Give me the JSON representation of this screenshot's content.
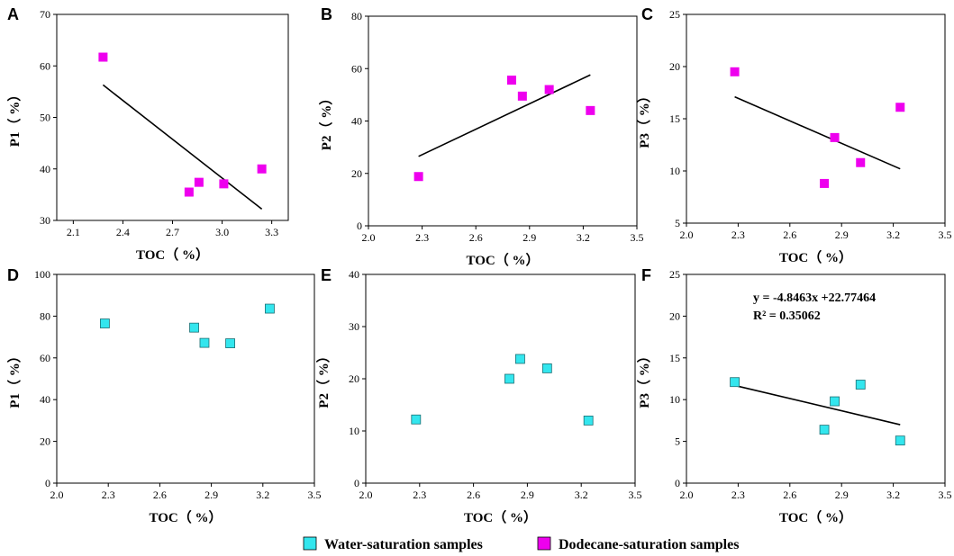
{
  "legend": {
    "water_label": "Water-saturation samples",
    "dodecane_label": "Dodecane-saturation samples",
    "water_color": "#33E6EE",
    "dodecane_color": "#EE00EE"
  },
  "chart_data": [
    {
      "panel": "A",
      "type": "scatter",
      "series": "dodecane",
      "xlabel": "TOC（ %）",
      "ylabel": "P1（ %）",
      "xlim": [
        2.0,
        3.4
      ],
      "ylim": [
        30,
        70
      ],
      "xticks": [
        "2.1",
        "2.4",
        "2.7",
        "3.0",
        "3.3"
      ],
      "xtick_vals": [
        2.1,
        2.4,
        2.7,
        3.0,
        3.3
      ],
      "yticks": [
        "30",
        "40",
        "50",
        "60",
        "70"
      ],
      "ytick_vals": [
        30,
        40,
        50,
        60,
        70
      ],
      "points": [
        [
          2.28,
          61.7
        ],
        [
          2.8,
          35.5
        ],
        [
          2.86,
          37.4
        ],
        [
          3.01,
          37.1
        ],
        [
          3.24,
          40.0
        ]
      ],
      "trend": [
        [
          2.28,
          56.3
        ],
        [
          3.24,
          32.2
        ]
      ]
    },
    {
      "panel": "B",
      "type": "scatter",
      "series": "dodecane",
      "xlabel": "TOC（ %）",
      "ylabel": "P2（ %）",
      "xlim": [
        2.0,
        3.5
      ],
      "ylim": [
        0,
        80
      ],
      "xticks": [
        "2.0",
        "2.3",
        "2.6",
        "2.9",
        "3.2",
        "3.5"
      ],
      "xtick_vals": [
        2.0,
        2.3,
        2.6,
        2.9,
        3.2,
        3.5
      ],
      "yticks": [
        "0",
        "20",
        "40",
        "60",
        "80"
      ],
      "ytick_vals": [
        0,
        20,
        40,
        60,
        80
      ],
      "points": [
        [
          2.28,
          18.8
        ],
        [
          2.8,
          55.6
        ],
        [
          2.86,
          49.5
        ],
        [
          3.01,
          52.0
        ],
        [
          3.24,
          44.0
        ]
      ],
      "trend": [
        [
          2.28,
          26.5
        ],
        [
          3.24,
          57.6
        ]
      ]
    },
    {
      "panel": "C",
      "type": "scatter",
      "series": "dodecane",
      "xlabel": "TOC（ %）",
      "ylabel": "P3（ %）",
      "xlim": [
        2.0,
        3.5
      ],
      "ylim": [
        5,
        25
      ],
      "xticks": [
        "2.0",
        "2.3",
        "2.6",
        "2.9",
        "3.2",
        "3.5"
      ],
      "xtick_vals": [
        2.0,
        2.3,
        2.6,
        2.9,
        3.2,
        3.5
      ],
      "yticks": [
        "5",
        "10",
        "15",
        "20",
        "25"
      ],
      "ytick_vals": [
        5,
        10,
        15,
        20,
        25
      ],
      "points": [
        [
          2.28,
          19.5
        ],
        [
          2.8,
          8.8
        ],
        [
          2.86,
          13.2
        ],
        [
          3.01,
          10.8
        ],
        [
          3.24,
          16.1
        ]
      ],
      "trend": [
        [
          2.28,
          17.1
        ],
        [
          3.24,
          10.2
        ]
      ]
    },
    {
      "panel": "D",
      "type": "scatter",
      "series": "water",
      "xlabel": "TOC（ %）",
      "ylabel": "P1（ %）",
      "xlim": [
        2.0,
        3.5
      ],
      "ylim": [
        0,
        100
      ],
      "xticks": [
        "2.0",
        "2.3",
        "2.6",
        "2.9",
        "3.2",
        "3.5"
      ],
      "xtick_vals": [
        2.0,
        2.3,
        2.6,
        2.9,
        3.2,
        3.5
      ],
      "yticks": [
        "0",
        "20",
        "40",
        "60",
        "80",
        "100"
      ],
      "ytick_vals": [
        0,
        20,
        40,
        60,
        80,
        100
      ],
      "points": [
        [
          2.28,
          76.5
        ],
        [
          2.8,
          74.5
        ],
        [
          2.86,
          67.2
        ],
        [
          3.01,
          67.0
        ],
        [
          3.24,
          83.6
        ]
      ],
      "trend": null
    },
    {
      "panel": "E",
      "type": "scatter",
      "series": "water",
      "xlabel": "TOC（ %）",
      "ylabel": "P2（ %）",
      "xlim": [
        2.0,
        3.5
      ],
      "ylim": [
        0,
        40
      ],
      "xticks": [
        "2.0",
        "2.3",
        "2.6",
        "2.9",
        "3.2",
        "3.5"
      ],
      "xtick_vals": [
        2.0,
        2.3,
        2.6,
        2.9,
        3.2,
        3.5
      ],
      "yticks": [
        "0",
        "10",
        "20",
        "30",
        "40"
      ],
      "ytick_vals": [
        0,
        10,
        20,
        30,
        40
      ],
      "points": [
        [
          2.28,
          12.2
        ],
        [
          2.8,
          20.0
        ],
        [
          2.86,
          23.8
        ],
        [
          3.01,
          22.0
        ],
        [
          3.24,
          12.0
        ]
      ],
      "trend": null
    },
    {
      "panel": "F",
      "type": "scatter",
      "series": "water",
      "xlabel": "TOC（ %）",
      "ylabel": "P3（ %）",
      "xlim": [
        2.0,
        3.5
      ],
      "ylim": [
        0,
        25
      ],
      "xticks": [
        "2.0",
        "2.3",
        "2.6",
        "2.9",
        "3.2",
        "3.5"
      ],
      "xtick_vals": [
        2.0,
        2.3,
        2.6,
        2.9,
        3.2,
        3.5
      ],
      "yticks": [
        "0",
        "5",
        "10",
        "15",
        "20",
        "25"
      ],
      "ytick_vals": [
        0,
        5,
        10,
        15,
        20,
        25
      ],
      "points": [
        [
          2.28,
          12.1
        ],
        [
          2.8,
          6.4
        ],
        [
          2.86,
          9.8
        ],
        [
          3.01,
          11.8
        ],
        [
          3.24,
          5.1
        ]
      ],
      "trend": [
        [
          2.28,
          11.7
        ],
        [
          3.24,
          7.0
        ]
      ],
      "equation": "y = -4.8463x +22.77464",
      "r2": "R² = 0.35062"
    }
  ]
}
